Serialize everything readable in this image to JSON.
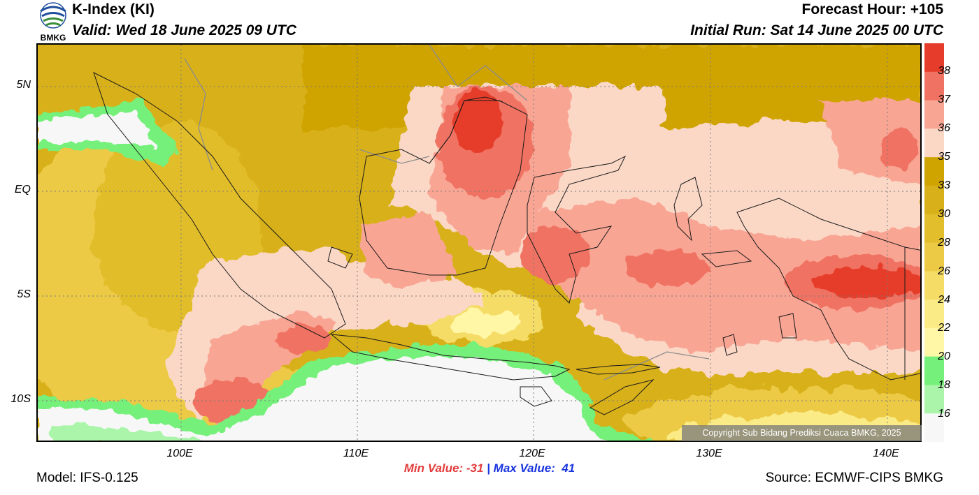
{
  "header": {
    "title": "K-Index (KI)",
    "valid": "Valid: Wed 18 June 2025 09 UTC",
    "forecast_hour": "Forecast Hour: +105",
    "initial_run": "Initial Run: Sat 14 June 2025 00 UTC",
    "logo_text": "BMKG"
  },
  "map": {
    "lat_labels": [
      "5N",
      "EQ",
      "5S",
      "10S"
    ],
    "lon_labels": [
      "100E",
      "110E",
      "120E",
      "130E",
      "140E"
    ],
    "copyright": "Copyright Sub Bidang Prediksi Cuaca BMKG, 2025",
    "colors": {
      "lt16": "#f7f7f7",
      "c16": "#aaf5aa",
      "c18": "#75f07a",
      "c20": "#fff6a6",
      "c22": "#fbeb87",
      "c24": "#f5dc66",
      "c26": "#ecca45",
      "c28": "#e2bd2c",
      "c30": "#d8b01a",
      "c33": "#cfa300",
      "c35": "#fbd8c6",
      "c36": "#f9a594",
      "c37": "#f07262",
      "c38": "#e63c2c",
      "land": "#d8b01a",
      "border": "#1a1a1a",
      "river": "#8c8c8c"
    }
  },
  "colorbar": {
    "labels": [
      "38",
      "37",
      "36",
      "35",
      "33",
      "30",
      "28",
      "26",
      "24",
      "22",
      "20",
      "18",
      "16"
    ],
    "colors": [
      "#e63c2c",
      "#f07262",
      "#f9a594",
      "#fbd8c6",
      "#cfa300",
      "#d8b01a",
      "#e2bd2c",
      "#ecca45",
      "#f5dc66",
      "#fbeb87",
      "#fff6a6",
      "#75f07a",
      "#aaf5aa",
      "#f7f7f7"
    ]
  },
  "stats": {
    "min": "Min Value: -31",
    "separator": "|",
    "max": "Max Value:  41"
  },
  "footer": {
    "model": "Model: IFS-0.125",
    "source": "Source: ECMWF-CIPS BMKG"
  }
}
